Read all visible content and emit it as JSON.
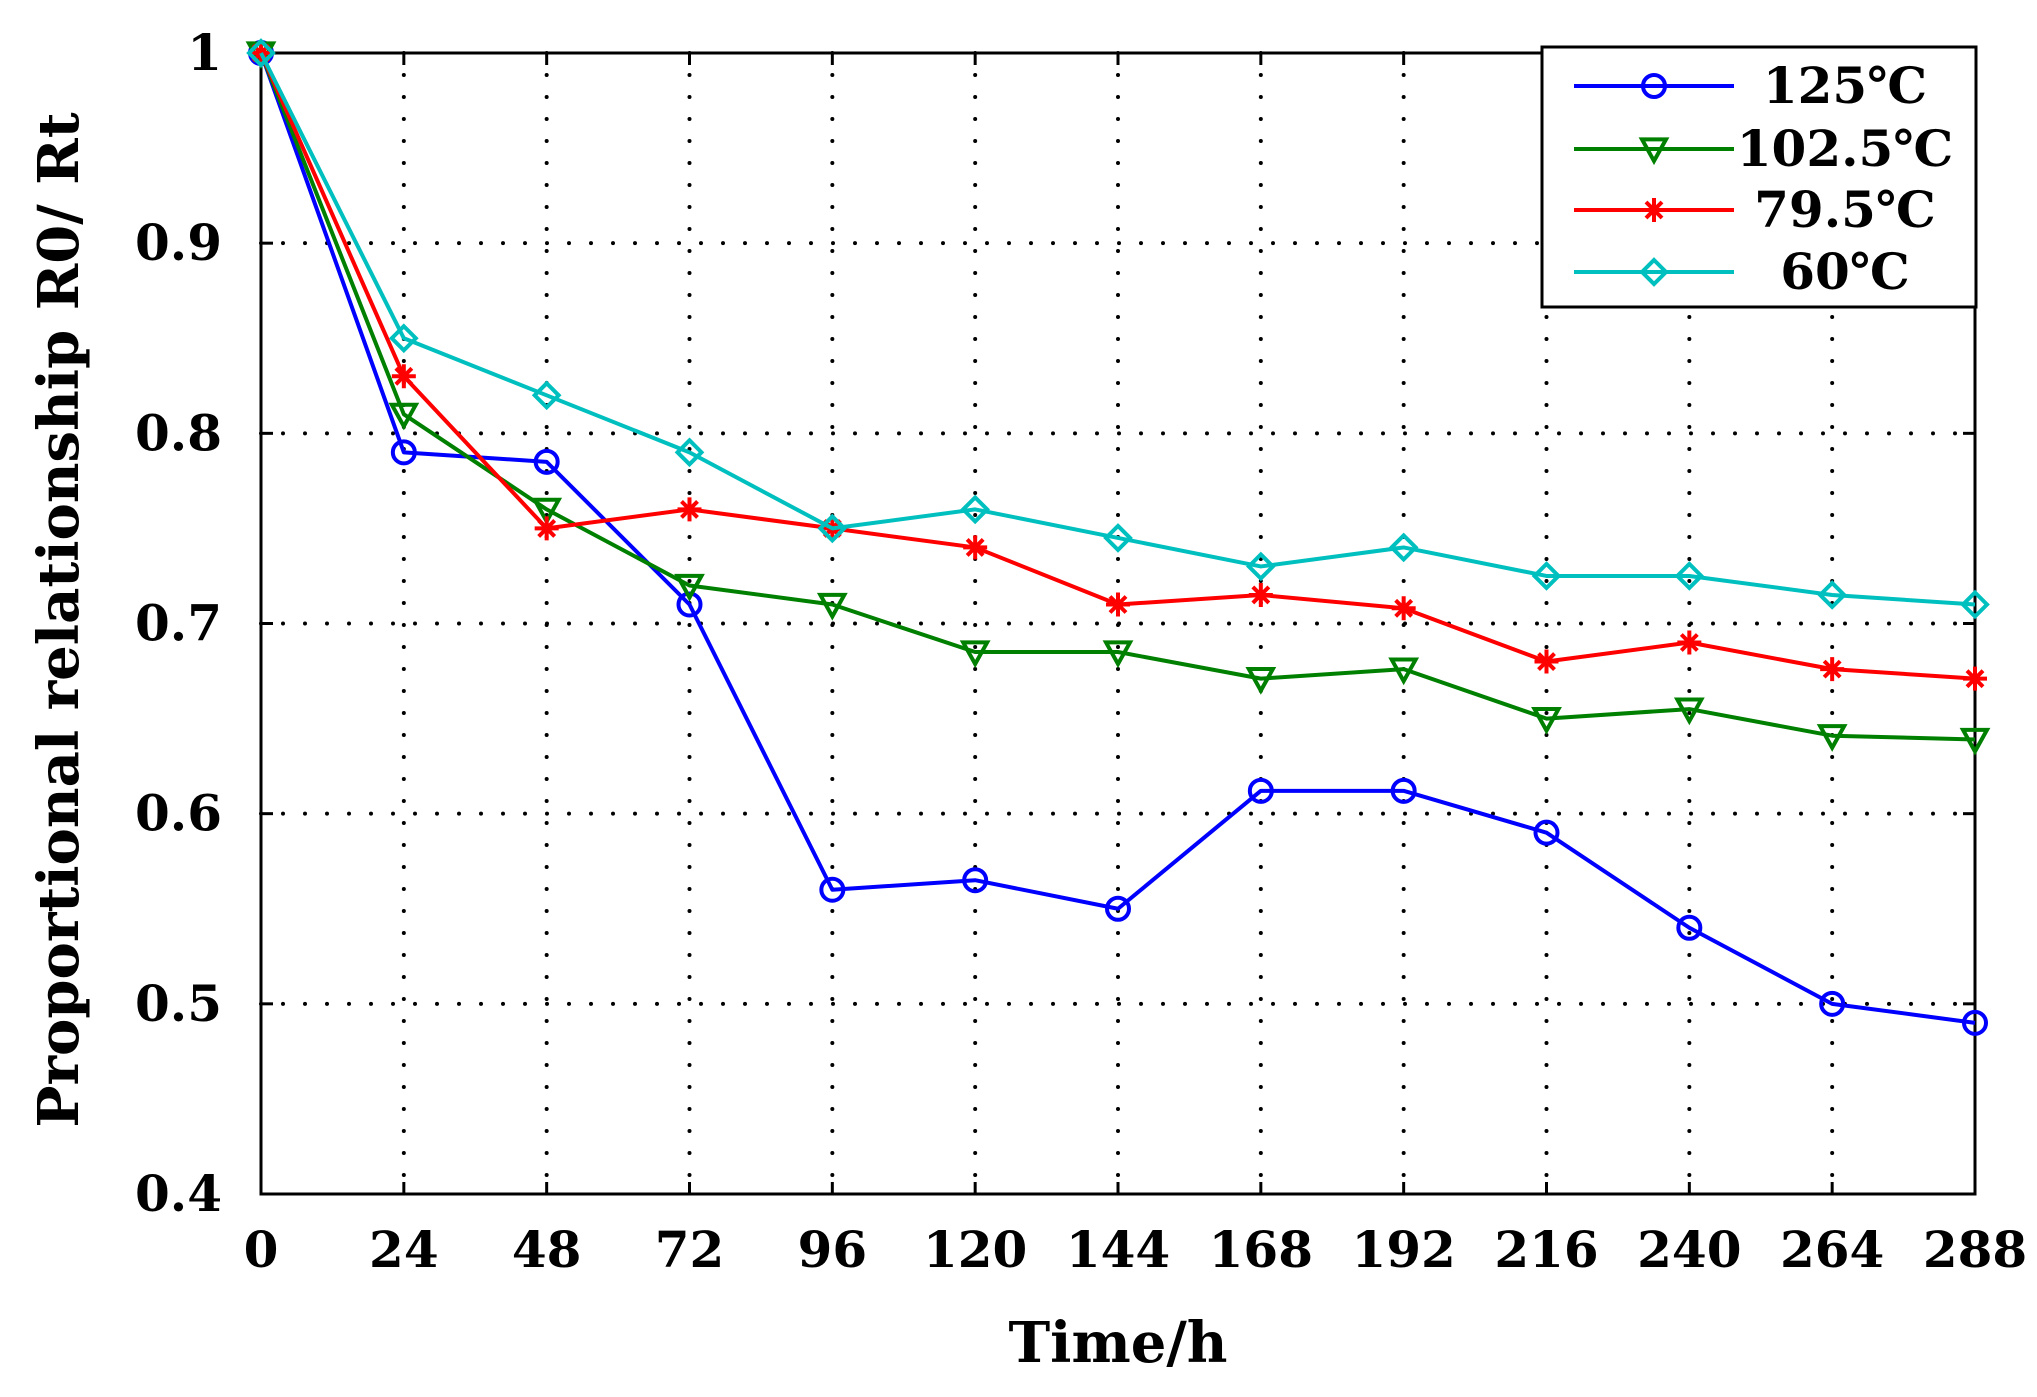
{
  "chart_data": {
    "type": "line",
    "title": "",
    "xlabel": "Time/h",
    "ylabel": "Proportional relationship R0/ Rt",
    "x": [
      0,
      24,
      48,
      72,
      96,
      120,
      144,
      168,
      192,
      216,
      240,
      264,
      288
    ],
    "xticks": [
      "0",
      "24",
      "48",
      "72",
      "96",
      "120",
      "144",
      "168",
      "192",
      "216",
      "240",
      "264",
      "288"
    ],
    "yticks": [
      "0.4",
      "0.5",
      "0.6",
      "0.7",
      "0.8",
      "0.9",
      "1"
    ],
    "ytick_values": [
      0.4,
      0.5,
      0.6,
      0.7,
      0.8,
      0.9,
      1.0
    ],
    "xlim": [
      0,
      288
    ],
    "ylim": [
      0.4,
      1.0
    ],
    "grid": true,
    "legend_position": "top-right",
    "series": [
      {
        "name": "125℃",
        "color": "#0000ff",
        "marker": "circle",
        "values": [
          1.0,
          0.79,
          0.785,
          0.71,
          0.56,
          0.565,
          0.55,
          0.612,
          0.612,
          0.59,
          0.54,
          0.5,
          0.49
        ]
      },
      {
        "name": "102.5℃",
        "color": "#008000",
        "marker": "triangle-down",
        "values": [
          1.0,
          0.81,
          0.76,
          0.72,
          0.71,
          0.685,
          0.685,
          0.671,
          0.676,
          0.65,
          0.655,
          0.641,
          0.639
        ]
      },
      {
        "name": "79.5℃",
        "color": "#ff0000",
        "marker": "star",
        "values": [
          1.0,
          0.83,
          0.75,
          0.76,
          0.75,
          0.74,
          0.71,
          0.715,
          0.708,
          0.68,
          0.69,
          0.676,
          0.671
        ]
      },
      {
        "name": "60℃",
        "color": "#00bfbf",
        "marker": "diamond",
        "values": [
          1.0,
          0.85,
          0.82,
          0.79,
          0.75,
          0.76,
          0.745,
          0.73,
          0.74,
          0.725,
          0.725,
          0.715,
          0.71
        ]
      }
    ]
  }
}
